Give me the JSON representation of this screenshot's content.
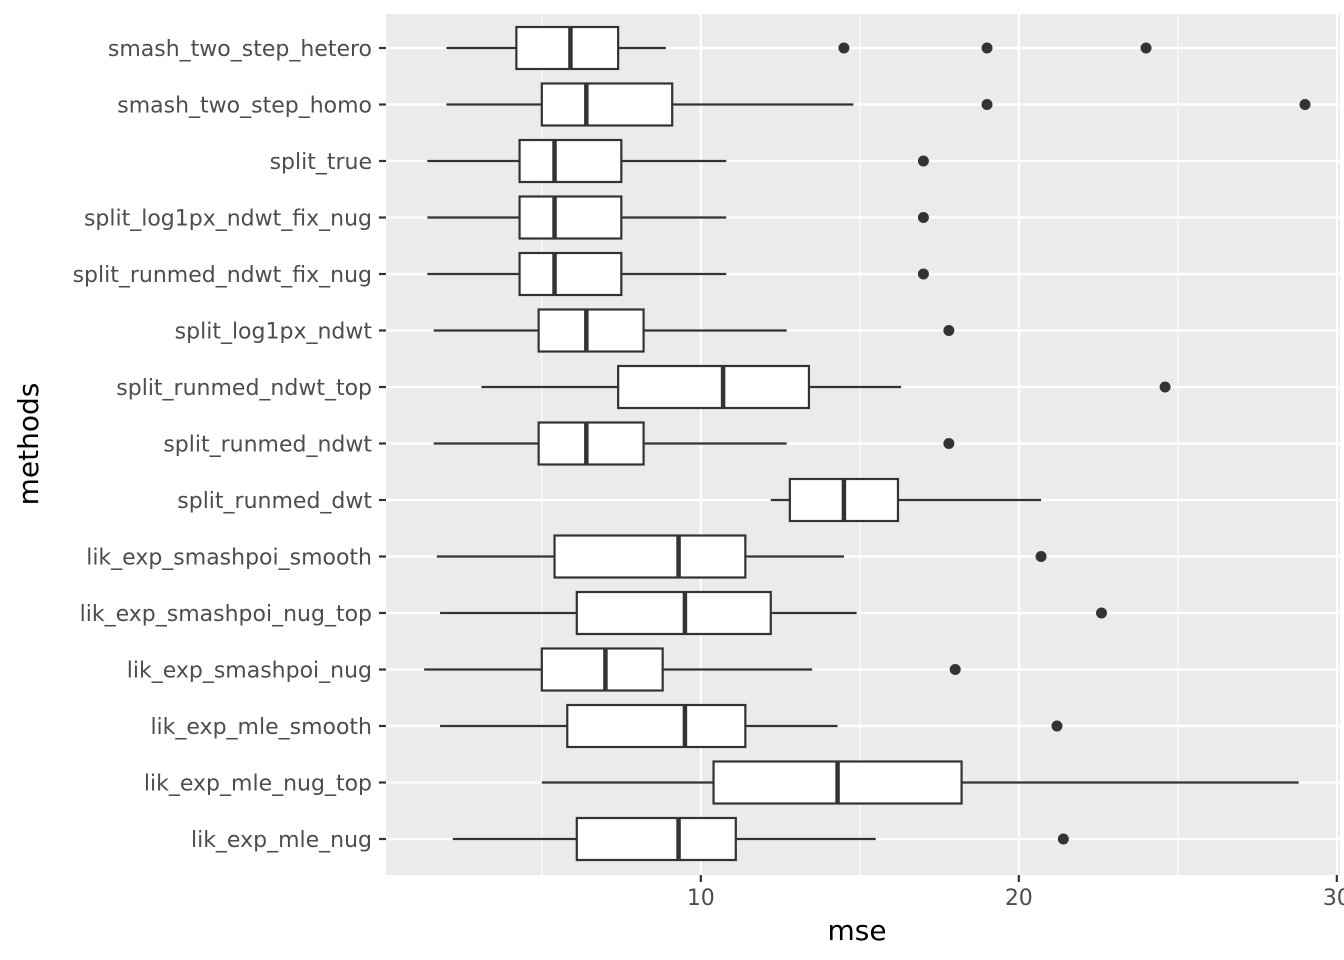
{
  "chart_data": {
    "type": "boxplot",
    "orientation": "horizontal",
    "title": "",
    "xlabel": "mse",
    "ylabel": "methods",
    "xlim": [
      0.1,
      30.1
    ],
    "x_ticks": [
      10,
      20,
      30
    ],
    "x_tick_labels": [
      "10",
      "20",
      "30"
    ],
    "grid": true,
    "colors": {
      "panel": "#ebebeb",
      "grid_major": "#ffffff",
      "box_fill": "#ffffff",
      "box_line": "#333333",
      "outlier": "#333333"
    },
    "categories": [
      "smash_two_step_hetero",
      "smash_two_step_homo",
      "split_true",
      "split_log1px_ndwt_fix_nug",
      "split_runmed_ndwt_fix_nug",
      "split_log1px_ndwt",
      "split_runmed_ndwt_top",
      "split_runmed_ndwt",
      "split_runmed_dwt",
      "lik_exp_smashpoi_smooth",
      "lik_exp_smashpoi_nug_top",
      "lik_exp_smashpoi_nug",
      "lik_exp_mle_smooth",
      "lik_exp_mle_nug_top",
      "lik_exp_mle_nug"
    ],
    "boxes": [
      {
        "method": "smash_two_step_hetero",
        "whisker_low": 2.0,
        "q1": 4.2,
        "median": 5.9,
        "q3": 7.4,
        "whisker_high": 8.9,
        "outliers": [
          14.5,
          19.0,
          24.0
        ]
      },
      {
        "method": "smash_two_step_homo",
        "whisker_low": 2.0,
        "q1": 5.0,
        "median": 6.4,
        "q3": 9.1,
        "whisker_high": 14.8,
        "outliers": [
          19.0,
          29.0
        ]
      },
      {
        "method": "split_true",
        "whisker_low": 1.4,
        "q1": 4.3,
        "median": 5.4,
        "q3": 7.5,
        "whisker_high": 10.8,
        "outliers": [
          17.0
        ]
      },
      {
        "method": "split_log1px_ndwt_fix_nug",
        "whisker_low": 1.4,
        "q1": 4.3,
        "median": 5.4,
        "q3": 7.5,
        "whisker_high": 10.8,
        "outliers": [
          17.0
        ]
      },
      {
        "method": "split_runmed_ndwt_fix_nug",
        "whisker_low": 1.4,
        "q1": 4.3,
        "median": 5.4,
        "q3": 7.5,
        "whisker_high": 10.8,
        "outliers": [
          17.0
        ]
      },
      {
        "method": "split_log1px_ndwt",
        "whisker_low": 1.6,
        "q1": 4.9,
        "median": 6.4,
        "q3": 8.2,
        "whisker_high": 12.7,
        "outliers": [
          17.8
        ]
      },
      {
        "method": "split_runmed_ndwt_top",
        "whisker_low": 3.1,
        "q1": 7.4,
        "median": 10.7,
        "q3": 13.4,
        "whisker_high": 16.3,
        "outliers": [
          24.6
        ]
      },
      {
        "method": "split_runmed_ndwt",
        "whisker_low": 1.6,
        "q1": 4.9,
        "median": 6.4,
        "q3": 8.2,
        "whisker_high": 12.7,
        "outliers": [
          17.8
        ]
      },
      {
        "method": "split_runmed_dwt",
        "whisker_low": 12.2,
        "q1": 12.8,
        "median": 14.5,
        "q3": 16.2,
        "whisker_high": 20.7,
        "outliers": []
      },
      {
        "method": "lik_exp_smashpoi_smooth",
        "whisker_low": 1.7,
        "q1": 5.4,
        "median": 9.3,
        "q3": 11.4,
        "whisker_high": 14.5,
        "outliers": [
          20.7
        ]
      },
      {
        "method": "lik_exp_smashpoi_nug_top",
        "whisker_low": 1.8,
        "q1": 6.1,
        "median": 9.5,
        "q3": 12.2,
        "whisker_high": 14.9,
        "outliers": [
          22.6
        ]
      },
      {
        "method": "lik_exp_smashpoi_nug",
        "whisker_low": 1.3,
        "q1": 5.0,
        "median": 7.0,
        "q3": 8.8,
        "whisker_high": 13.5,
        "outliers": [
          18.0
        ]
      },
      {
        "method": "lik_exp_mle_smooth",
        "whisker_low": 1.8,
        "q1": 5.8,
        "median": 9.5,
        "q3": 11.4,
        "whisker_high": 14.3,
        "outliers": [
          21.2
        ]
      },
      {
        "method": "lik_exp_mle_nug_top",
        "whisker_low": 5.0,
        "q1": 10.4,
        "median": 14.3,
        "q3": 18.2,
        "whisker_high": 28.8,
        "outliers": []
      },
      {
        "method": "lik_exp_mle_nug",
        "whisker_low": 2.2,
        "q1": 6.1,
        "median": 9.3,
        "q3": 11.1,
        "whisker_high": 15.5,
        "outliers": [
          21.4
        ]
      }
    ]
  }
}
